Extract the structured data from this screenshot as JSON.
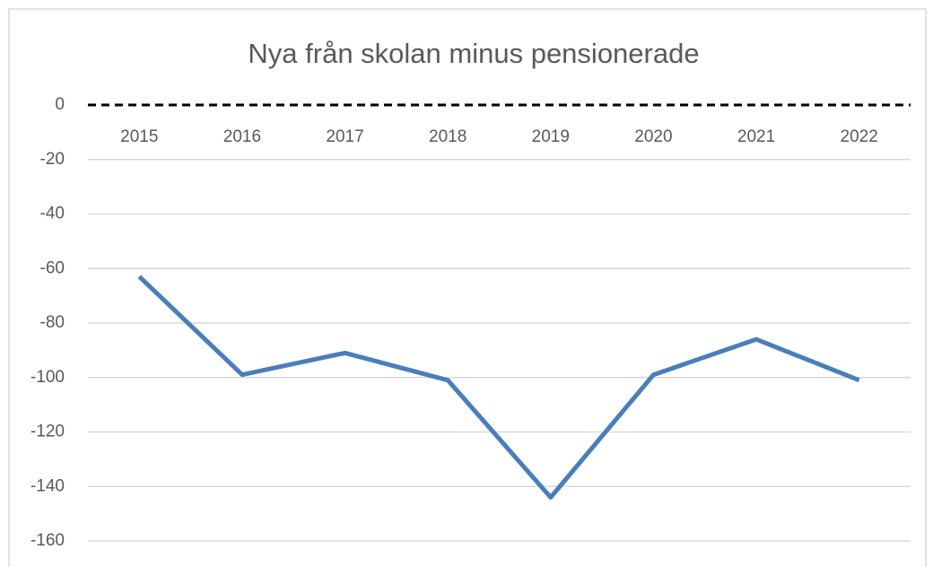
{
  "chart_data": {
    "type": "line",
    "title": "Nya från skolan minus pensionerade",
    "categories": [
      "2015",
      "2016",
      "2017",
      "2018",
      "2019",
      "2020",
      "2021",
      "2022"
    ],
    "series": [
      {
        "name": "Nya från skolan minus pensionerade",
        "color": "#4a7ebb",
        "values": [
          -63,
          -99,
          -91,
          -101,
          -144,
          -99,
          -86,
          -101
        ]
      }
    ],
    "ylim": [
      -160,
      0
    ],
    "yticks": [
      0,
      -20,
      -40,
      -60,
      -80,
      -100,
      -120,
      -140,
      -160
    ],
    "grid": true
  }
}
